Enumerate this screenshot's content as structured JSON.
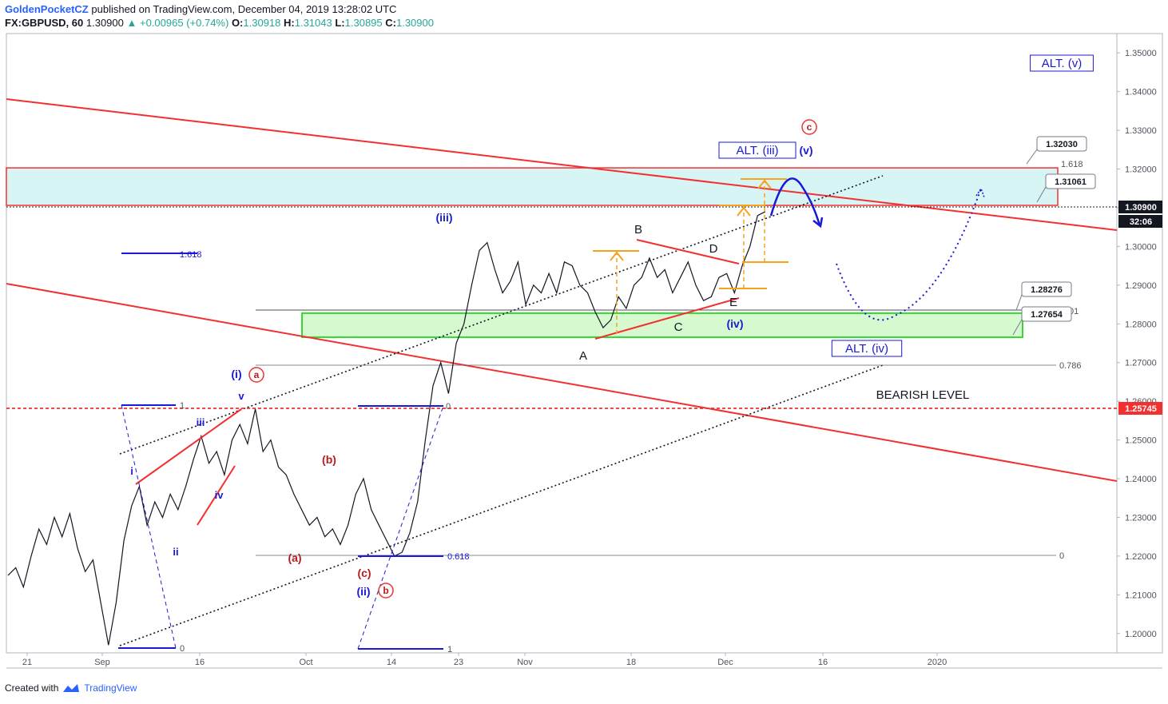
{
  "header": {
    "author": "GoldenPocketCZ",
    "published": "published on TradingView.com, December 04, 2019 13:28:02 UTC",
    "symbol": "FX:GBPUSD, 60",
    "last": "1.30900",
    "change": "+0.00965 (+0.74%)",
    "o_label": "O:",
    "o": "1.30918",
    "h_label": "H:",
    "h": "1.31043",
    "l_label": "L:",
    "l": "1.30895",
    "c_label": "C:",
    "c": "1.30900"
  },
  "footer": {
    "created_with": "Created with",
    "brand": "TradingView"
  },
  "colors": {
    "bull": "#26a69a",
    "red": "#f23030",
    "blue": "#1a1ad6",
    "darkred": "#b71c1c",
    "orange": "#f7a21b",
    "cyan_zone": "#d7f5f5",
    "green_zone": "#d7f9d0",
    "green_line": "#35d835",
    "zone_bg": "#fdfdf3"
  },
  "chart_data": {
    "type": "line",
    "symbol": "FX:GBPUSD",
    "interval": "60",
    "ylim": [
      1.195,
      1.355
    ],
    "grid": false,
    "y_ticks": [
      "1.35000",
      "1.34000",
      "1.33000",
      "1.32000",
      "1.31000",
      "1.30000",
      "1.29000",
      "1.28000",
      "1.27000",
      "1.26000",
      "1.25000",
      "1.24000",
      "1.23000",
      "1.22000",
      "1.21000",
      "1.20000"
    ],
    "x_ticks": [
      "21",
      "Sep",
      "16",
      "Oct",
      "14",
      "23",
      "Nov",
      "18",
      "Dec",
      "16",
      "2020"
    ],
    "price_path": [
      [
        1.215,
        1.217,
        1.212,
        1.22,
        1.227,
        1.223,
        1.23,
        1.225,
        1.231,
        1.222,
        1.216,
        1.219,
        1.208,
        1.197,
        1.208,
        1.224,
        1.233,
        1.238,
        1.228,
        1.234,
        1.23,
        1.236,
        1.232,
        1.238,
        1.245,
        1.251,
        1.244,
        1.247,
        1.241,
        1.25,
        1.254,
        1.249,
        1.258,
        1.247,
        1.25,
        1.243,
        1.241,
        1.236,
        1.232,
        1.228,
        1.23,
        1.225,
        1.227,
        1.223,
        1.228,
        1.236,
        1.24,
        1.232,
        1.228,
        1.224,
        1.22,
        1.221,
        1.226,
        1.234,
        1.25,
        1.264,
        1.27,
        1.262,
        1.275,
        1.28,
        1.29,
        1.299,
        1.301,
        1.294,
        1.288,
        1.291,
        1.296,
        1.285,
        1.29,
        1.288,
        1.293,
        1.288,
        1.296,
        1.295,
        1.29,
        1.288,
        1.283,
        1.279,
        1.281,
        1.287,
        1.284,
        1.29,
        1.292,
        1.297,
        1.292,
        1.294,
        1.288,
        1.292,
        1.296,
        1.29,
        1.286,
        1.287,
        1.292,
        1.293,
        1.288,
        1.295,
        1.3,
        1.308,
        1.309
      ]
    ],
    "horizontal_levels": [
      {
        "price": 1.31061,
        "label": "1.31061"
      },
      {
        "price": 1.3203,
        "label": "1.32030"
      },
      {
        "price": 1.28276,
        "label": "1.28276"
      },
      {
        "price": 1.27654,
        "label": "1.27654"
      },
      {
        "price": 1.25745,
        "label": "1.25745"
      },
      {
        "price": 1.309,
        "label": "1.30900"
      }
    ],
    "price_badge_time": "32:06",
    "fib_labels": [
      {
        "label": "1.618",
        "price": 1.2975
      },
      {
        "label": "1",
        "price": 1.259
      },
      {
        "label": "0",
        "price": 1.197
      },
      {
        "label": "0",
        "price": 1.259
      },
      {
        "label": "0.618",
        "price": 1.2199
      },
      {
        "label": "1",
        "price": 1.196
      },
      {
        "label": "0.786",
        "price": 1.2685
      },
      {
        "label": "0",
        "price": 1.22
      },
      {
        "label": "1.618",
        "price": 1.3203
      },
      {
        "label": "01",
        "price": 1.2825
      }
    ],
    "annotations": [
      {
        "text": "ALT. (v)",
        "boxed": true
      },
      {
        "text": "ALT. (iii)",
        "boxed": true
      },
      {
        "text": "ALT. (iv)",
        "boxed": true
      },
      {
        "text": "BEARISH LEVEL"
      },
      {
        "text": "(iii)"
      },
      {
        "text": "(v)"
      },
      {
        "text": "c"
      },
      {
        "text": "B"
      },
      {
        "text": "D"
      },
      {
        "text": "E"
      },
      {
        "text": "C"
      },
      {
        "text": "A"
      },
      {
        "text": "(iv)"
      },
      {
        "text": "(i)"
      },
      {
        "text": "a"
      },
      {
        "text": "v"
      },
      {
        "text": "iii"
      },
      {
        "text": "i"
      },
      {
        "text": "iv"
      },
      {
        "text": "ii"
      },
      {
        "text": "(b)"
      },
      {
        "text": "(a)"
      },
      {
        "text": "(c)"
      },
      {
        "text": "(ii)"
      },
      {
        "text": "b"
      }
    ]
  }
}
